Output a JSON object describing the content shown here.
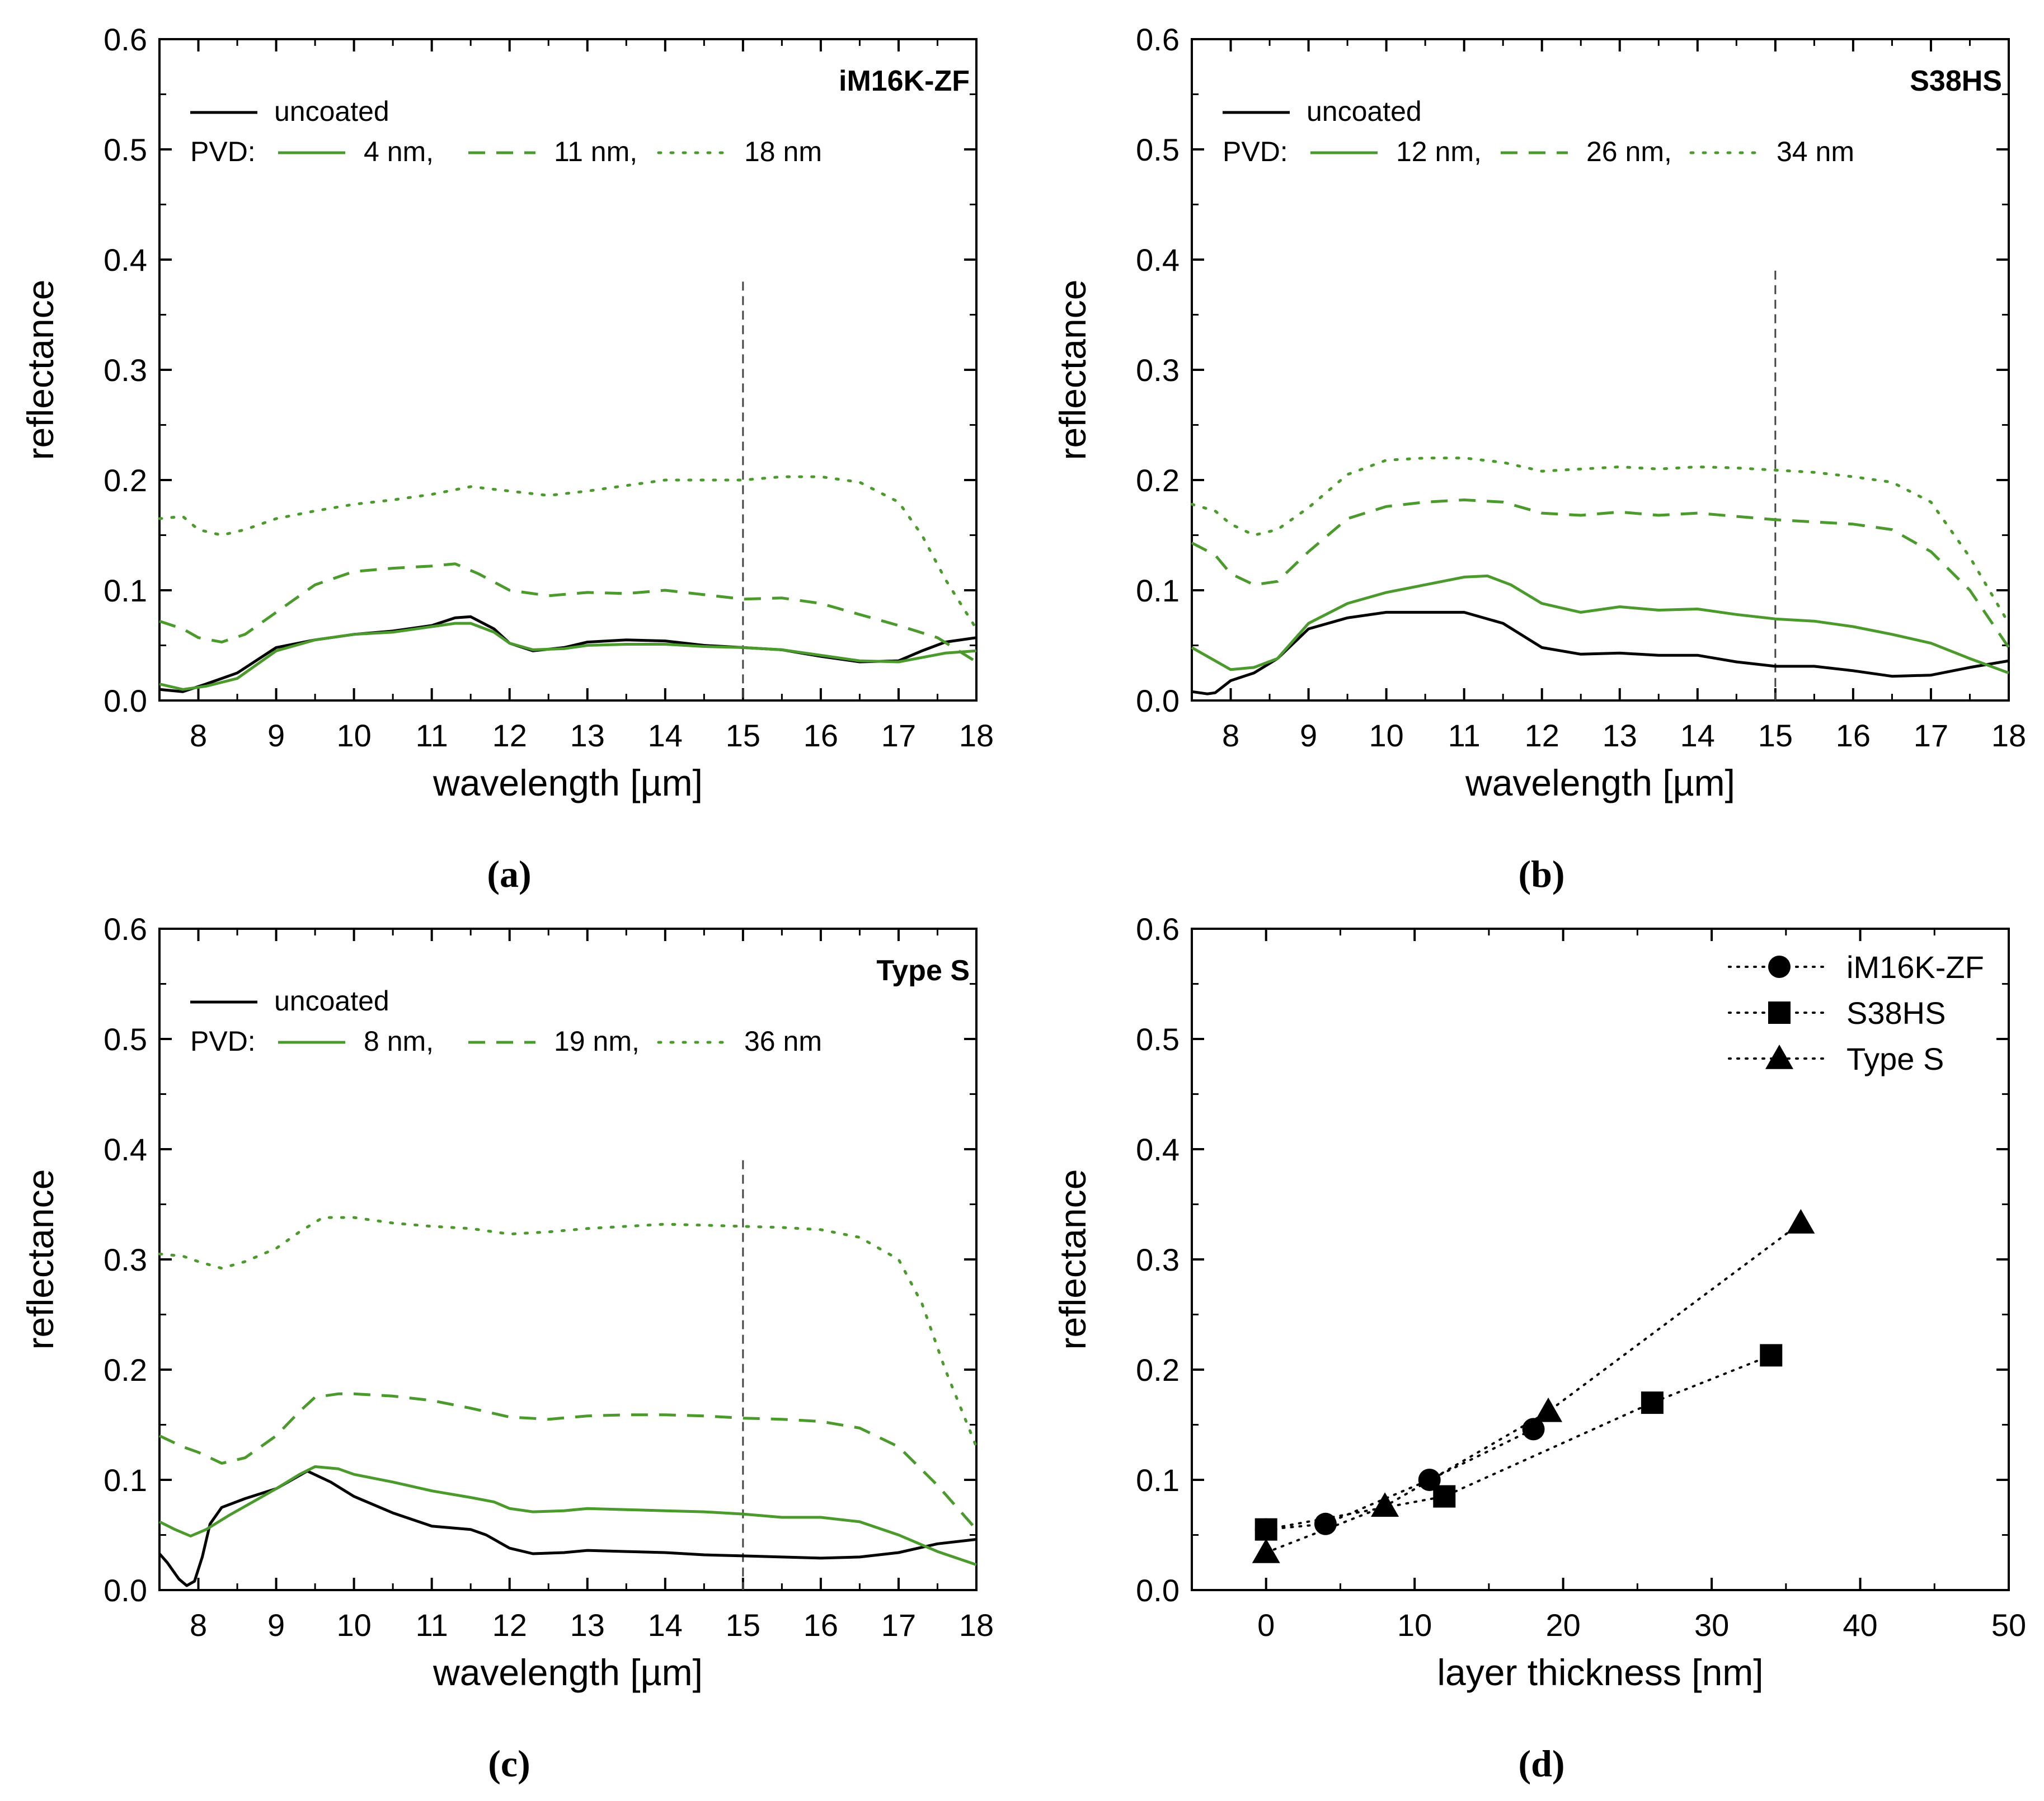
{
  "colors": {
    "uncoated": "#000000",
    "pvd": "#4a9a2c",
    "frame": "#000000",
    "marker": "#000000",
    "vline": "#444444"
  },
  "chart_data": [
    {
      "id": "a",
      "type": "line",
      "caption": "(a)",
      "title": "iM16K-ZF",
      "xlabel": "wavelength [µm]",
      "ylabel": "reflectance",
      "xlim": [
        7.5,
        18
      ],
      "ylim": [
        0,
        0.6
      ],
      "xticks": [
        8,
        9,
        10,
        11,
        12,
        13,
        14,
        15,
        16,
        17,
        18
      ],
      "yticks": [
        0.0,
        0.1,
        0.2,
        0.3,
        0.4,
        0.5,
        0.6
      ],
      "ytick_labels": [
        "0.0",
        "0.1",
        "0.2",
        "0.3",
        "0.4",
        "0.5",
        "0.6"
      ],
      "vline": {
        "x": 15,
        "ymax": 0.38
      },
      "legend": {
        "row1_label": "uncoated",
        "row2_prefix": "PVD:",
        "items": [
          "4 nm,",
          "11 nm,",
          "18 nm"
        ]
      },
      "series": [
        {
          "name": "uncoated",
          "style": "solid",
          "color": "uncoated",
          "x": [
            7.5,
            7.8,
            8.1,
            8.5,
            9.0,
            9.5,
            10.0,
            10.5,
            11.0,
            11.3,
            11.5,
            11.8,
            12.0,
            12.3,
            12.7,
            13.0,
            13.5,
            14.0,
            14.5,
            15.0,
            15.5,
            16.0,
            16.5,
            17.0,
            17.3,
            17.6,
            18.0
          ],
          "y": [
            0.01,
            0.008,
            0.015,
            0.025,
            0.048,
            0.055,
            0.06,
            0.063,
            0.068,
            0.075,
            0.076,
            0.065,
            0.052,
            0.045,
            0.048,
            0.053,
            0.055,
            0.054,
            0.05,
            0.048,
            0.046,
            0.04,
            0.035,
            0.036,
            0.045,
            0.053,
            0.057
          ]
        },
        {
          "name": "4 nm",
          "style": "solid",
          "color": "pvd",
          "x": [
            7.5,
            7.8,
            8.1,
            8.5,
            9.0,
            9.5,
            10.0,
            10.5,
            11.0,
            11.3,
            11.5,
            11.8,
            12.0,
            12.3,
            12.7,
            13.0,
            13.5,
            14.0,
            14.5,
            15.0,
            15.5,
            16.0,
            16.5,
            17.0,
            17.3,
            17.6,
            18.0
          ],
          "y": [
            0.015,
            0.01,
            0.013,
            0.02,
            0.045,
            0.055,
            0.06,
            0.062,
            0.067,
            0.07,
            0.07,
            0.062,
            0.052,
            0.046,
            0.047,
            0.05,
            0.051,
            0.051,
            0.049,
            0.048,
            0.046,
            0.041,
            0.036,
            0.035,
            0.039,
            0.043,
            0.045
          ]
        },
        {
          "name": "11 nm",
          "style": "dashed",
          "color": "pvd",
          "x": [
            7.5,
            7.8,
            8.0,
            8.3,
            8.6,
            9.0,
            9.5,
            10.0,
            10.5,
            11.0,
            11.3,
            11.6,
            12.0,
            12.5,
            13.0,
            13.5,
            14.0,
            14.5,
            15.0,
            15.5,
            16.0,
            16.5,
            17.0,
            17.5,
            18.0
          ],
          "y": [
            0.072,
            0.065,
            0.057,
            0.053,
            0.06,
            0.08,
            0.105,
            0.117,
            0.12,
            0.122,
            0.124,
            0.115,
            0.1,
            0.095,
            0.098,
            0.097,
            0.1,
            0.096,
            0.092,
            0.093,
            0.088,
            0.078,
            0.068,
            0.057,
            0.035
          ]
        },
        {
          "name": "18 nm",
          "style": "dotted",
          "color": "pvd",
          "x": [
            7.5,
            7.8,
            8.0,
            8.3,
            8.6,
            9.0,
            9.5,
            10.0,
            10.5,
            11.0,
            11.5,
            12.0,
            12.5,
            13.0,
            13.5,
            14.0,
            14.5,
            15.0,
            15.5,
            16.0,
            16.5,
            17.0,
            17.3,
            17.6,
            18.0
          ],
          "y": [
            0.165,
            0.167,
            0.155,
            0.15,
            0.155,
            0.165,
            0.172,
            0.178,
            0.182,
            0.187,
            0.194,
            0.19,
            0.186,
            0.19,
            0.195,
            0.2,
            0.2,
            0.2,
            0.203,
            0.203,
            0.198,
            0.18,
            0.15,
            0.11,
            0.065
          ]
        }
      ]
    },
    {
      "id": "b",
      "type": "line",
      "caption": "(b)",
      "title": "S38HS",
      "xlabel": "wavelength [µm]",
      "ylabel": "reflectance",
      "xlim": [
        7.5,
        18
      ],
      "ylim": [
        0,
        0.6
      ],
      "xticks": [
        8,
        9,
        10,
        11,
        12,
        13,
        14,
        15,
        16,
        17,
        18
      ],
      "yticks": [
        0.0,
        0.1,
        0.2,
        0.3,
        0.4,
        0.5,
        0.6
      ],
      "ytick_labels": [
        "0.0",
        "0.1",
        "0.2",
        "0.3",
        "0.4",
        "0.5",
        "0.6"
      ],
      "vline": {
        "x": 15,
        "ymax": 0.39
      },
      "legend": {
        "row1_label": "uncoated",
        "row2_prefix": "PVD:",
        "items": [
          "12 nm,",
          "26 nm,",
          "34 nm"
        ]
      },
      "series": [
        {
          "name": "uncoated",
          "style": "solid",
          "color": "uncoated",
          "x": [
            7.5,
            7.7,
            7.8,
            8.0,
            8.3,
            8.6,
            9.0,
            9.5,
            10.0,
            10.5,
            11.0,
            11.5,
            12.0,
            12.5,
            13.0,
            13.5,
            14.0,
            14.5,
            15.0,
            15.5,
            16.0,
            16.5,
            17.0,
            17.5,
            18.0
          ],
          "y": [
            0.008,
            0.006,
            0.007,
            0.018,
            0.025,
            0.038,
            0.065,
            0.075,
            0.08,
            0.08,
            0.08,
            0.07,
            0.048,
            0.042,
            0.043,
            0.041,
            0.041,
            0.035,
            0.031,
            0.031,
            0.027,
            0.022,
            0.023,
            0.03,
            0.036
          ]
        },
        {
          "name": "12 nm",
          "style": "solid",
          "color": "pvd",
          "x": [
            7.5,
            7.7,
            8.0,
            8.3,
            8.6,
            9.0,
            9.5,
            10.0,
            10.5,
            11.0,
            11.3,
            11.6,
            12.0,
            12.5,
            13.0,
            13.5,
            14.0,
            14.5,
            15.0,
            15.5,
            16.0,
            16.5,
            17.0,
            17.5,
            18.0
          ],
          "y": [
            0.048,
            0.04,
            0.028,
            0.03,
            0.038,
            0.07,
            0.088,
            0.098,
            0.105,
            0.112,
            0.113,
            0.105,
            0.088,
            0.08,
            0.085,
            0.082,
            0.083,
            0.078,
            0.074,
            0.072,
            0.067,
            0.06,
            0.052,
            0.038,
            0.025
          ]
        },
        {
          "name": "26 nm",
          "style": "dashed",
          "color": "pvd",
          "x": [
            7.5,
            7.8,
            8.0,
            8.3,
            8.6,
            9.0,
            9.5,
            10.0,
            10.5,
            11.0,
            11.5,
            12.0,
            12.5,
            13.0,
            13.5,
            14.0,
            14.5,
            15.0,
            15.5,
            16.0,
            16.5,
            17.0,
            17.5,
            18.0
          ],
          "y": [
            0.143,
            0.132,
            0.115,
            0.105,
            0.108,
            0.135,
            0.165,
            0.176,
            0.18,
            0.182,
            0.18,
            0.17,
            0.168,
            0.171,
            0.168,
            0.17,
            0.167,
            0.164,
            0.162,
            0.16,
            0.155,
            0.135,
            0.1,
            0.048
          ]
        },
        {
          "name": "34 nm",
          "style": "dotted",
          "color": "pvd",
          "x": [
            7.5,
            7.8,
            8.0,
            8.3,
            8.6,
            9.0,
            9.5,
            10.0,
            10.5,
            11.0,
            11.5,
            12.0,
            12.5,
            13.0,
            13.5,
            14.0,
            14.5,
            15.0,
            15.5,
            16.0,
            16.5,
            17.0,
            17.5,
            18.0
          ],
          "y": [
            0.178,
            0.172,
            0.16,
            0.15,
            0.155,
            0.175,
            0.205,
            0.218,
            0.22,
            0.22,
            0.216,
            0.208,
            0.21,
            0.212,
            0.21,
            0.212,
            0.211,
            0.209,
            0.207,
            0.203,
            0.198,
            0.18,
            0.13,
            0.07
          ]
        }
      ]
    },
    {
      "id": "c",
      "type": "line",
      "caption": "(c)",
      "title": "Type S",
      "xlabel": "wavelength [µm]",
      "ylabel": "reflectance",
      "xlim": [
        7.5,
        18
      ],
      "ylim": [
        0,
        0.6
      ],
      "xticks": [
        8,
        9,
        10,
        11,
        12,
        13,
        14,
        15,
        16,
        17,
        18
      ],
      "yticks": [
        0.0,
        0.1,
        0.2,
        0.3,
        0.4,
        0.5,
        0.6
      ],
      "ytick_labels": [
        "0.0",
        "0.1",
        "0.2",
        "0.3",
        "0.4",
        "0.5",
        "0.6"
      ],
      "vline": {
        "x": 15,
        "ymax": 0.39
      },
      "legend": {
        "row1_label": "uncoated",
        "row2_prefix": "PVD:",
        "items": [
          "8 nm,",
          "19 nm,",
          "36 nm"
        ]
      },
      "series": [
        {
          "name": "uncoated",
          "style": "solid",
          "color": "uncoated",
          "x": [
            7.5,
            7.6,
            7.75,
            7.85,
            7.95,
            8.05,
            8.15,
            8.3,
            8.6,
            9.0,
            9.4,
            9.7,
            10.0,
            10.5,
            11.0,
            11.5,
            11.7,
            12.0,
            12.3,
            12.7,
            13.0,
            13.5,
            14.0,
            14.5,
            15.0,
            15.5,
            16.0,
            16.5,
            17.0,
            17.5,
            18.0
          ],
          "y": [
            0.033,
            0.025,
            0.01,
            0.004,
            0.008,
            0.03,
            0.06,
            0.075,
            0.083,
            0.092,
            0.108,
            0.098,
            0.085,
            0.07,
            0.058,
            0.055,
            0.05,
            0.038,
            0.033,
            0.034,
            0.036,
            0.035,
            0.034,
            0.032,
            0.031,
            0.03,
            0.029,
            0.03,
            0.034,
            0.042,
            0.046
          ]
        },
        {
          "name": "8 nm",
          "style": "solid",
          "color": "pvd",
          "x": [
            7.5,
            7.7,
            7.9,
            8.1,
            8.4,
            8.7,
            9.0,
            9.3,
            9.5,
            9.8,
            10.0,
            10.5,
            11.0,
            11.5,
            11.8,
            12.0,
            12.3,
            12.7,
            13.0,
            13.5,
            14.0,
            14.5,
            15.0,
            15.5,
            16.0,
            16.5,
            17.0,
            17.5,
            18.0
          ],
          "y": [
            0.062,
            0.055,
            0.049,
            0.055,
            0.068,
            0.08,
            0.092,
            0.105,
            0.112,
            0.11,
            0.105,
            0.098,
            0.09,
            0.084,
            0.08,
            0.074,
            0.071,
            0.072,
            0.074,
            0.073,
            0.072,
            0.071,
            0.069,
            0.066,
            0.066,
            0.062,
            0.05,
            0.035,
            0.023
          ]
        },
        {
          "name": "19 nm",
          "style": "dashed",
          "color": "pvd",
          "x": [
            7.5,
            7.8,
            8.0,
            8.3,
            8.6,
            9.0,
            9.3,
            9.5,
            9.8,
            10.0,
            10.5,
            11.0,
            11.5,
            12.0,
            12.5,
            13.0,
            13.5,
            14.0,
            14.5,
            15.0,
            15.5,
            16.0,
            16.5,
            17.0,
            17.5,
            18.0
          ],
          "y": [
            0.14,
            0.13,
            0.125,
            0.115,
            0.12,
            0.14,
            0.162,
            0.175,
            0.178,
            0.178,
            0.176,
            0.172,
            0.165,
            0.157,
            0.155,
            0.158,
            0.159,
            0.159,
            0.158,
            0.156,
            0.155,
            0.153,
            0.147,
            0.13,
            0.095,
            0.055
          ]
        },
        {
          "name": "36 nm",
          "style": "dotted",
          "color": "pvd",
          "x": [
            7.5,
            7.8,
            8.0,
            8.3,
            8.6,
            9.0,
            9.3,
            9.6,
            10.0,
            10.5,
            11.0,
            11.5,
            12.0,
            12.5,
            13.0,
            13.5,
            14.0,
            14.5,
            15.0,
            15.5,
            16.0,
            16.5,
            17.0,
            17.3,
            17.6,
            18.0
          ],
          "y": [
            0.305,
            0.303,
            0.298,
            0.292,
            0.298,
            0.31,
            0.325,
            0.338,
            0.338,
            0.333,
            0.33,
            0.328,
            0.323,
            0.325,
            0.328,
            0.33,
            0.332,
            0.331,
            0.33,
            0.329,
            0.327,
            0.32,
            0.3,
            0.26,
            0.2,
            0.13
          ]
        }
      ]
    },
    {
      "id": "d",
      "type": "scatter",
      "caption": "(d)",
      "xlabel": "layer thickness [nm]",
      "ylabel": "reflectance",
      "xlim": [
        -5,
        50
      ],
      "ylim": [
        0,
        0.6
      ],
      "xticks": [
        0,
        10,
        20,
        30,
        40,
        50
      ],
      "yticks": [
        0.0,
        0.1,
        0.2,
        0.3,
        0.4,
        0.5,
        0.6
      ],
      "ytick_labels": [
        "0.0",
        "0.1",
        "0.2",
        "0.3",
        "0.4",
        "0.5",
        "0.6"
      ],
      "series": [
        {
          "name": "iM16K-ZF",
          "marker": "circle",
          "x": [
            0,
            4,
            11,
            18
          ],
          "y": [
            0.055,
            0.06,
            0.1,
            0.146
          ]
        },
        {
          "name": "S38HS",
          "marker": "square",
          "x": [
            0,
            12,
            26,
            34
          ],
          "y": [
            0.055,
            0.085,
            0.17,
            0.213
          ]
        },
        {
          "name": "Type S",
          "marker": "triangle",
          "x": [
            0,
            8,
            19,
            36
          ],
          "y": [
            0.034,
            0.076,
            0.162,
            0.333
          ]
        }
      ]
    }
  ]
}
